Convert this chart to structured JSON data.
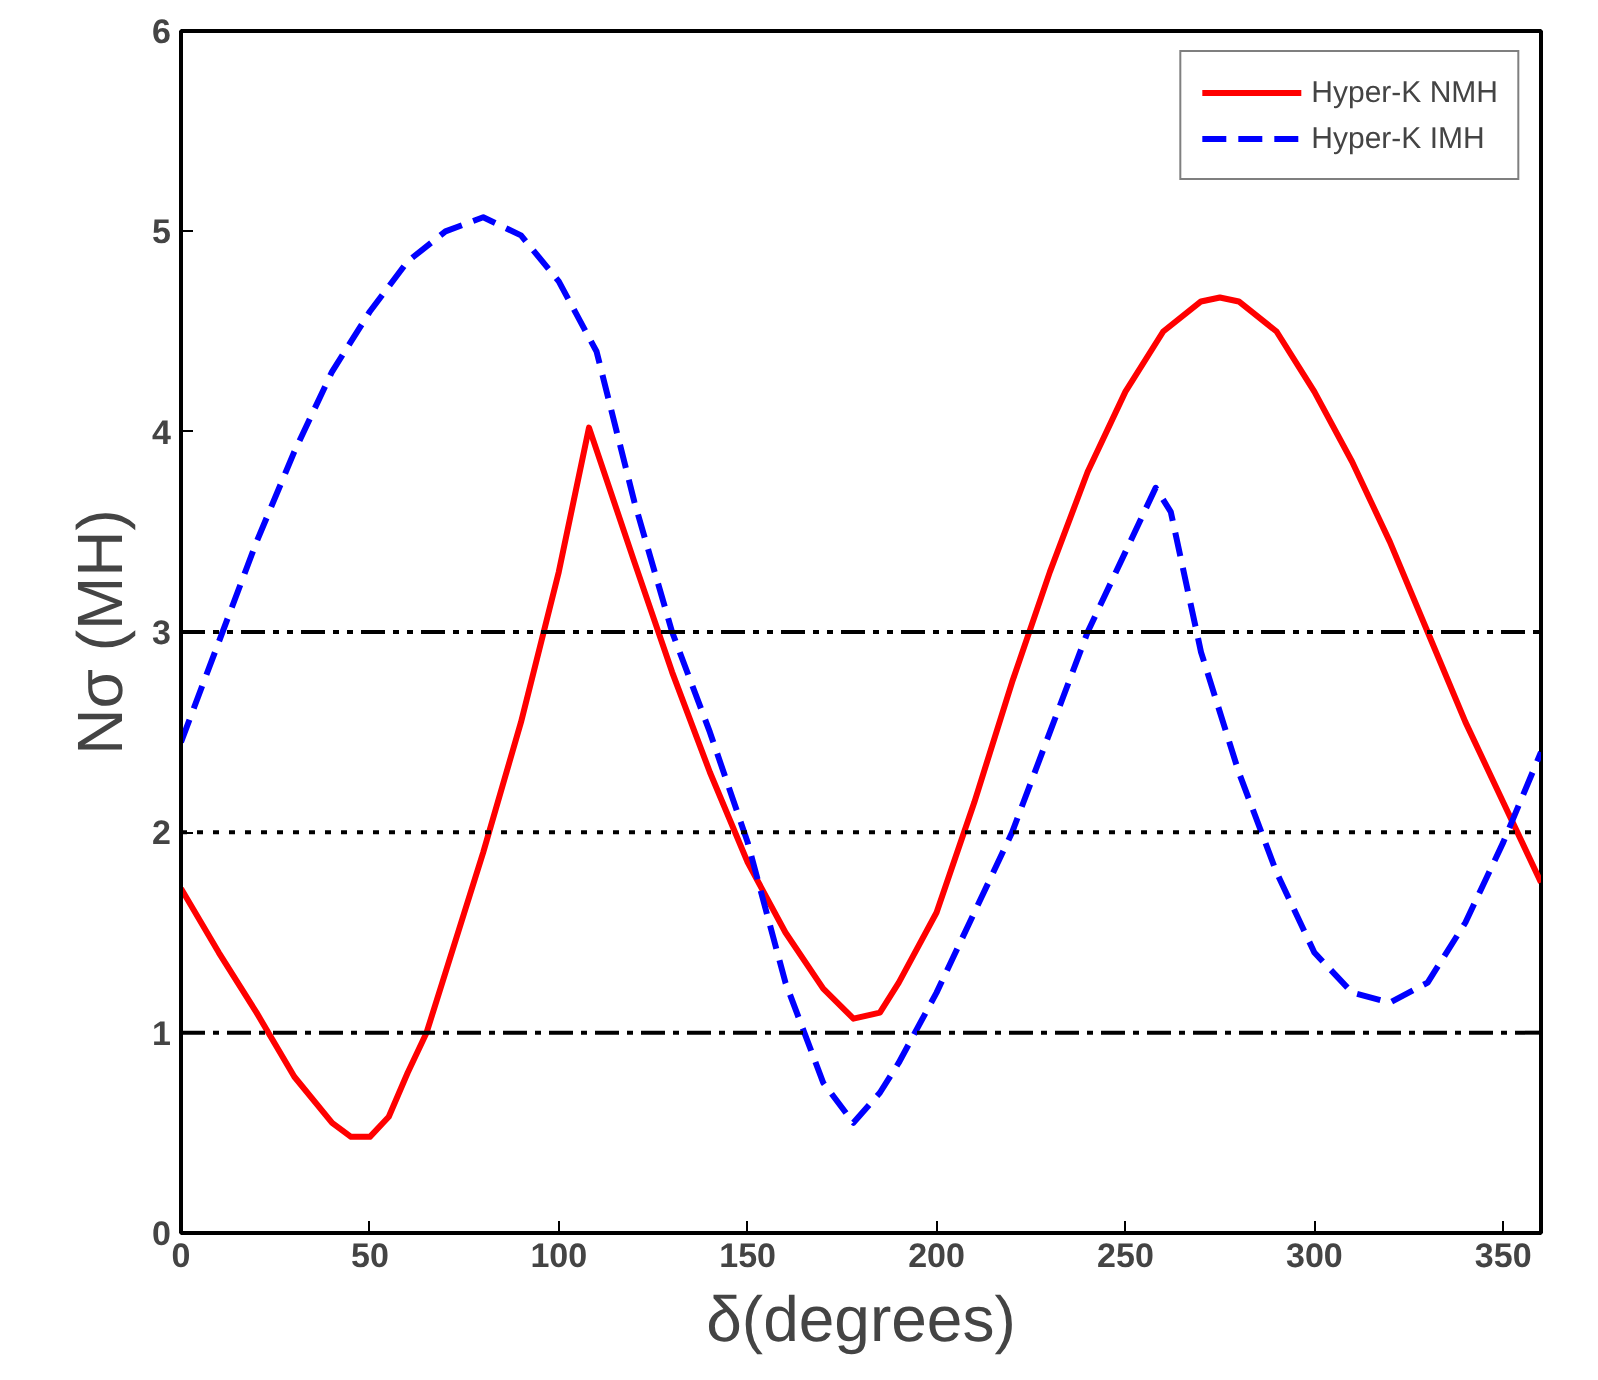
{
  "chart_data": {
    "type": "line",
    "xlabel": "δ(degrees)",
    "ylabel": "Nσ (MH)",
    "xlim": [
      0,
      360
    ],
    "ylim": [
      0,
      6
    ],
    "xticks": [
      0,
      50,
      100,
      150,
      200,
      250,
      300,
      350
    ],
    "yticks": [
      0,
      1,
      2,
      3,
      4,
      5,
      6
    ],
    "grid": false,
    "legend": "top right",
    "marker": "none",
    "series": [
      {
        "name": "Hyper-K NMH",
        "color": "#ff0000",
        "line_style": "solid",
        "x": [
          0,
          10,
          20,
          30,
          40,
          45,
          50,
          55,
          60,
          65,
          70,
          80,
          90,
          100,
          108,
          120,
          130,
          140,
          150,
          160,
          170,
          178,
          185,
          190,
          200,
          210,
          220,
          230,
          240,
          250,
          260,
          270,
          275,
          280,
          290,
          300,
          310,
          320,
          330,
          340,
          350,
          360
        ],
        "values": [
          1.72,
          1.4,
          1.1,
          0.78,
          0.55,
          0.48,
          0.48,
          0.58,
          0.8,
          1.0,
          1.3,
          1.9,
          2.55,
          3.3,
          4.02,
          3.35,
          2.8,
          2.3,
          1.85,
          1.5,
          1.22,
          1.07,
          1.1,
          1.25,
          1.6,
          2.15,
          2.75,
          3.3,
          3.8,
          4.2,
          4.5,
          4.65,
          4.67,
          4.65,
          4.5,
          4.2,
          3.85,
          3.45,
          3.0,
          2.55,
          2.15,
          1.75
        ]
      },
      {
        "name": "Hyper-K IMH",
        "color": "#0000ff",
        "line_style": "dashed",
        "x": [
          0,
          10,
          20,
          30,
          40,
          50,
          60,
          70,
          80,
          90,
          100,
          110,
          120,
          130,
          140,
          150,
          160,
          170,
          178,
          185,
          190,
          200,
          210,
          220,
          230,
          240,
          250,
          258,
          262,
          270,
          280,
          290,
          300,
          310,
          320,
          330,
          340,
          350,
          360
        ],
        "values": [
          2.45,
          2.95,
          3.45,
          3.9,
          4.3,
          4.6,
          4.85,
          5.0,
          5.07,
          4.98,
          4.75,
          4.4,
          3.65,
          3.0,
          2.5,
          1.95,
          1.25,
          0.75,
          0.55,
          0.7,
          0.85,
          1.2,
          1.6,
          2.0,
          2.5,
          3.0,
          3.4,
          3.72,
          3.6,
          2.9,
          2.3,
          1.8,
          1.4,
          1.2,
          1.15,
          1.25,
          1.55,
          1.95,
          2.4
        ]
      }
    ],
    "ref_lines": [
      {
        "axis": "y",
        "value": 3,
        "label": null,
        "color": "#000000",
        "line_style": "dashdotdot"
      },
      {
        "axis": "y",
        "value": 2,
        "label": null,
        "color": "#000000",
        "line_style": "dotted"
      },
      {
        "axis": "y",
        "value": 1,
        "label": null,
        "color": "#000000",
        "line_style": "dashdot"
      }
    ]
  }
}
